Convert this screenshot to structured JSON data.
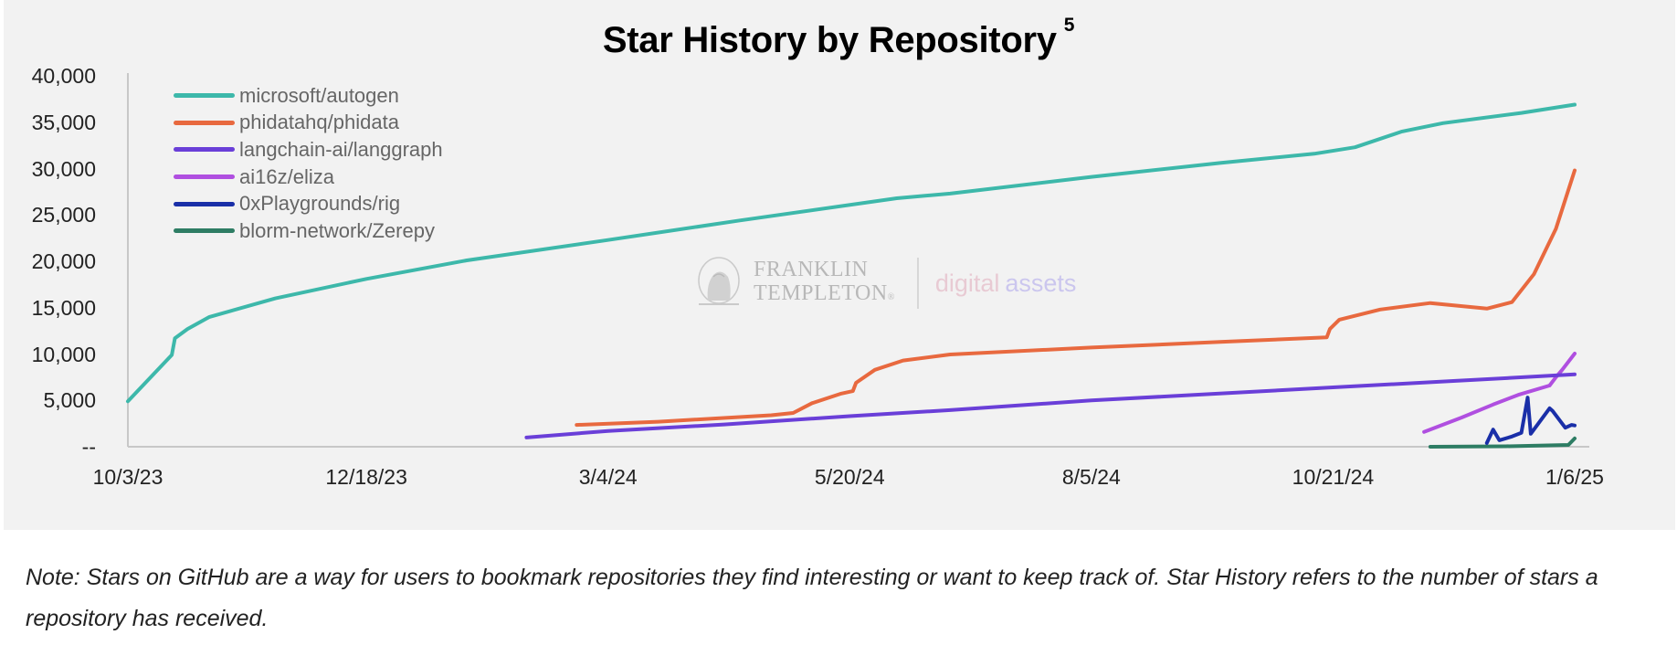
{
  "chart_data": {
    "type": "line",
    "title": "Star History by Repository",
    "title_footnote": "5",
    "xlabel": "",
    "ylabel": "",
    "ylim": [
      0,
      40000
    ],
    "y_ticks": [
      {
        "value": 40000,
        "label": "40,000"
      },
      {
        "value": 35000,
        "label": "35,000"
      },
      {
        "value": 30000,
        "label": "30,000"
      },
      {
        "value": 25000,
        "label": "25,000"
      },
      {
        "value": 20000,
        "label": "20,000"
      },
      {
        "value": 15000,
        "label": "15,000"
      },
      {
        "value": 10000,
        "label": "10,000"
      },
      {
        "value": 5000,
        "label": "5,000"
      },
      {
        "value": 0,
        "label": "--"
      }
    ],
    "x_ticks": [
      {
        "date": "2023-10-03",
        "label": "10/3/23"
      },
      {
        "date": "2023-12-18",
        "label": "12/18/23"
      },
      {
        "date": "2024-03-04",
        "label": "3/4/24"
      },
      {
        "date": "2024-05-20",
        "label": "5/20/24"
      },
      {
        "date": "2024-08-05",
        "label": "8/5/24"
      },
      {
        "date": "2024-10-21",
        "label": "10/21/24"
      },
      {
        "date": "2025-01-06",
        "label": "1/6/25"
      }
    ],
    "grid": false,
    "legend_position": "upper-left",
    "series": [
      {
        "name": "microsoft/autogen",
        "color": "#3db8aa",
        "points": [
          [
            "2023-10-03",
            4900
          ],
          [
            "2023-10-17",
            9900
          ],
          [
            "2023-10-18",
            11700
          ],
          [
            "2023-10-22",
            12700
          ],
          [
            "2023-10-29",
            14000
          ],
          [
            "2023-11-19",
            16000
          ],
          [
            "2023-12-18",
            18100
          ],
          [
            "2024-01-19",
            20100
          ],
          [
            "2024-03-04",
            22300
          ],
          [
            "2024-04-15",
            24400
          ],
          [
            "2024-06-04",
            26800
          ],
          [
            "2024-06-21",
            27300
          ],
          [
            "2024-08-05",
            29100
          ],
          [
            "2024-09-15",
            30600
          ],
          [
            "2024-10-15",
            31600
          ],
          [
            "2024-10-28",
            32300
          ],
          [
            "2024-11-12",
            34000
          ],
          [
            "2024-11-25",
            34900
          ],
          [
            "2024-12-20",
            36000
          ],
          [
            "2025-01-06",
            36900
          ]
        ]
      },
      {
        "name": "phidatahq/phidata",
        "color": "#e8693f",
        "points": [
          [
            "2024-02-23",
            2350
          ],
          [
            "2024-03-20",
            2700
          ],
          [
            "2024-04-25",
            3400
          ],
          [
            "2024-05-02",
            3650
          ],
          [
            "2024-05-08",
            4700
          ],
          [
            "2024-05-17",
            5700
          ],
          [
            "2024-05-21",
            6000
          ],
          [
            "2024-05-22",
            6900
          ],
          [
            "2024-05-28",
            8300
          ],
          [
            "2024-06-06",
            9300
          ],
          [
            "2024-06-21",
            9950
          ],
          [
            "2024-08-05",
            10700
          ],
          [
            "2024-09-15",
            11300
          ],
          [
            "2024-10-19",
            11800
          ],
          [
            "2024-10-20",
            12700
          ],
          [
            "2024-10-23",
            13700
          ],
          [
            "2024-11-05",
            14800
          ],
          [
            "2024-11-21",
            15500
          ],
          [
            "2024-12-09",
            14900
          ],
          [
            "2024-12-17",
            15600
          ],
          [
            "2024-12-24",
            18600
          ],
          [
            "2024-12-31",
            23500
          ],
          [
            "2025-01-06",
            29800
          ]
        ]
      },
      {
        "name": "langchain-ai/langgraph",
        "color": "#6a3fd8",
        "points": [
          [
            "2024-02-07",
            1000
          ],
          [
            "2024-03-04",
            1700
          ],
          [
            "2024-04-10",
            2400
          ],
          [
            "2024-05-20",
            3300
          ],
          [
            "2024-06-21",
            3950
          ],
          [
            "2024-08-05",
            5000
          ],
          [
            "2024-10-21",
            6400
          ],
          [
            "2024-11-29",
            7100
          ],
          [
            "2025-01-06",
            7800
          ]
        ]
      },
      {
        "name": "ai16z/eliza",
        "color": "#b04fe0",
        "points": [
          [
            "2024-11-19",
            1600
          ],
          [
            "2024-12-01",
            3150
          ],
          [
            "2024-12-11",
            4550
          ],
          [
            "2024-12-19",
            5600
          ],
          [
            "2024-12-29",
            6600
          ],
          [
            "2024-12-31",
            7500
          ],
          [
            "2025-01-02",
            8300
          ],
          [
            "2025-01-06",
            10050
          ]
        ]
      },
      {
        "name": "0xPlaygrounds/rig",
        "color": "#1a2fa8",
        "points": [
          [
            "2024-12-09",
            400
          ],
          [
            "2024-12-11",
            1850
          ],
          [
            "2024-12-13",
            700
          ],
          [
            "2024-12-17",
            1100
          ],
          [
            "2024-12-20",
            1500
          ],
          [
            "2024-12-22",
            5300
          ],
          [
            "2024-12-23",
            1400
          ],
          [
            "2024-12-29",
            4150
          ],
          [
            "2024-12-30",
            3850
          ],
          [
            "2025-01-03",
            2050
          ],
          [
            "2025-01-05",
            2350
          ],
          [
            "2025-01-06",
            2300
          ]
        ]
      },
      {
        "name": "blorm-network/Zerepy",
        "color": "#2e7d64",
        "points": [
          [
            "2024-11-21",
            0
          ],
          [
            "2024-12-15",
            50
          ],
          [
            "2025-01-04",
            200
          ],
          [
            "2025-01-06",
            900
          ]
        ]
      }
    ]
  },
  "watermark": {
    "brand_line1": "FRANKLIN",
    "brand_line2": "TEMPLETON",
    "brand_mark": "®",
    "tagline_part1": "digital",
    "tagline_part2": "assets"
  },
  "note": "Note: Stars on GitHub are a way for users to bookmark repositories they find interesting or want to keep track of. Star History refers to the number of stars a repository has received."
}
